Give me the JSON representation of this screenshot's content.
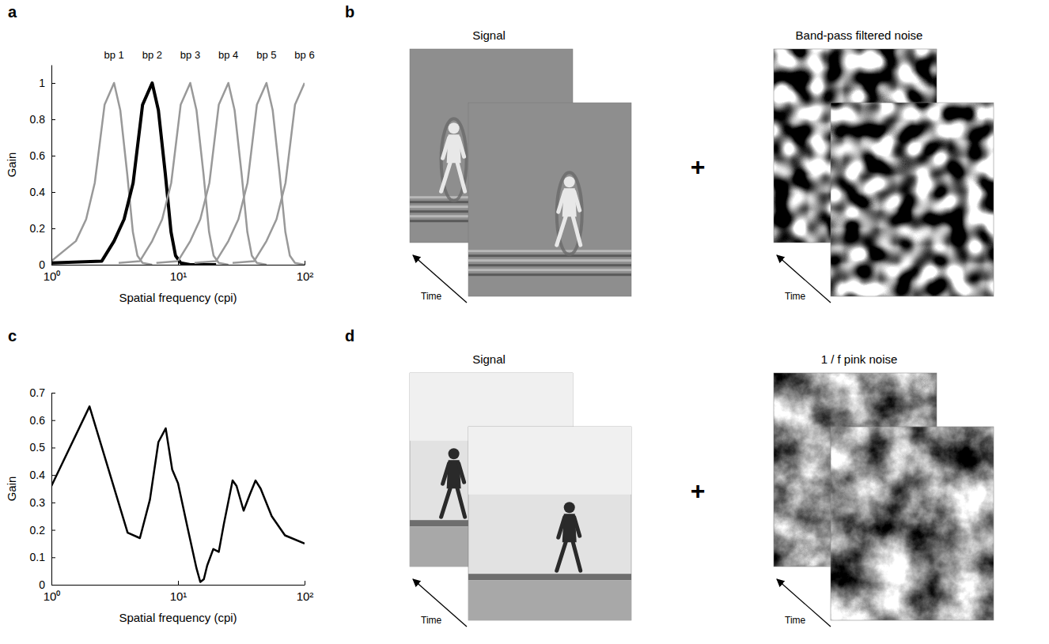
{
  "chart_data": [
    {
      "panel_label": "a",
      "type": "line",
      "xlabel": "Spatial frequency (cpi)",
      "ylabel": "Gain",
      "log": "x",
      "xlim": [
        1,
        100
      ],
      "xticks": [
        {
          "value": 1,
          "label": "10⁰"
        },
        {
          "value": 10,
          "label": "10¹"
        },
        {
          "value": 100,
          "label": "10²"
        }
      ],
      "ylim": [
        0,
        1.1
      ],
      "yticks": [
        0,
        0.2,
        0.4,
        0.6,
        0.8,
        1
      ],
      "series": [
        {
          "name": "bp 1",
          "color": "#999999",
          "line_style": "solid",
          "x": [
            1,
            1.56,
            1.88,
            2.2,
            2.63,
            3.125,
            3.5,
            3.97,
            4.4,
            4.78,
            5.25,
            6.25
          ],
          "values": [
            0.02,
            0.13,
            0.25,
            0.45,
            0.88,
            1,
            0.85,
            0.5,
            0.18,
            0.05,
            0.01,
            0
          ]
        },
        {
          "name": "bp 2",
          "color": "#000000",
          "line_style": "thick",
          "x": [
            1,
            2.5,
            3.125,
            3.75,
            4.42,
            5.25,
            6.25,
            7,
            7.94,
            8.81,
            9.56,
            10.5,
            12.5,
            20
          ],
          "values": [
            0.01,
            0.02,
            0.13,
            0.25,
            0.45,
            0.88,
            1,
            0.85,
            0.5,
            0.18,
            0.05,
            0.01,
            0,
            0
          ]
        },
        {
          "name": "bp 3",
          "color": "#999999",
          "line_style": "solid",
          "x": [
            3.4,
            5,
            6.25,
            7.5,
            8.84,
            10.5,
            12.5,
            14,
            15.9,
            17.6,
            19.1,
            21,
            25
          ],
          "values": [
            0.01,
            0.02,
            0.13,
            0.25,
            0.45,
            0.88,
            1,
            0.85,
            0.5,
            0.18,
            0.05,
            0.01,
            0
          ]
        },
        {
          "name": "bp 4",
          "color": "#999999",
          "line_style": "solid",
          "x": [
            6.75,
            10,
            12.5,
            15,
            17.7,
            21,
            25,
            28,
            31.8,
            35.3,
            38.3,
            42,
            50
          ],
          "values": [
            0.01,
            0.02,
            0.13,
            0.25,
            0.45,
            0.88,
            1,
            0.85,
            0.5,
            0.18,
            0.05,
            0.01,
            0
          ]
        },
        {
          "name": "bp 5",
          "color": "#999999",
          "line_style": "solid",
          "x": [
            13.5,
            20,
            25,
            30,
            35.4,
            42,
            50,
            56,
            63.5,
            70.5,
            76.5,
            84,
            100
          ],
          "values": [
            0.01,
            0.02,
            0.13,
            0.25,
            0.45,
            0.88,
            1,
            0.85,
            0.5,
            0.18,
            0.05,
            0.01,
            0
          ]
        },
        {
          "name": "bp 6",
          "color": "#999999",
          "line_style": "solid",
          "x": [
            27,
            40,
            50,
            60,
            70.7,
            84,
            100
          ],
          "values": [
            0.01,
            0.02,
            0.13,
            0.25,
            0.45,
            0.88,
            1
          ]
        }
      ]
    },
    {
      "panel_label": "c",
      "type": "line",
      "xlabel": "Spatial frequency (cpi)",
      "ylabel": "Gain",
      "log": "x",
      "xlim": [
        1,
        100
      ],
      "xticks": [
        {
          "value": 1,
          "label": "10⁰"
        },
        {
          "value": 10,
          "label": "10¹"
        },
        {
          "value": 100,
          "label": "10²"
        }
      ],
      "ylim": [
        0,
        0.7
      ],
      "yticks": [
        0,
        0.1,
        0.2,
        0.3,
        0.4,
        0.5,
        0.6,
        0.7
      ],
      "series": [
        {
          "color": "#000000",
          "line_style": "solid",
          "x": [
            1,
            2,
            4,
            5,
            6,
            7,
            8,
            9,
            10,
            12,
            14,
            15,
            16,
            17,
            19,
            21,
            23,
            27,
            29,
            33,
            37,
            41,
            45,
            55,
            70,
            100
          ],
          "values": [
            0.36,
            0.65,
            0.19,
            0.17,
            0.31,
            0.52,
            0.57,
            0.42,
            0.37,
            0.2,
            0.06,
            0.01,
            0.02,
            0.07,
            0.13,
            0.12,
            0.22,
            0.38,
            0.36,
            0.27,
            0.33,
            0.38,
            0.35,
            0.25,
            0.18,
            0.15
          ]
        }
      ]
    }
  ],
  "image_panels": [
    {
      "panel_label": "b",
      "signal_title": "Signal",
      "noise_title": "Band-pass filtered noise",
      "time_label": "Time",
      "operator": "+"
    },
    {
      "panel_label": "d",
      "signal_title": "Signal",
      "noise_title": "1 / f pink noise",
      "time_label": "Time",
      "operator": "+"
    }
  ]
}
